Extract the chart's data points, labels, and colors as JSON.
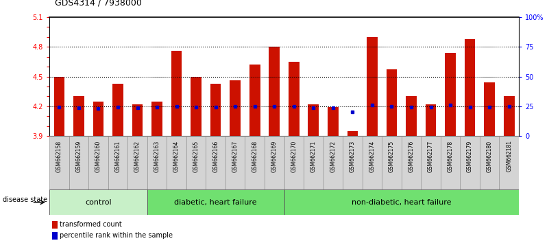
{
  "title": "GDS4314 / 7938000",
  "samples": [
    "GSM662158",
    "GSM662159",
    "GSM662160",
    "GSM662161",
    "GSM662162",
    "GSM662163",
    "GSM662164",
    "GSM662165",
    "GSM662166",
    "GSM662167",
    "GSM662168",
    "GSM662169",
    "GSM662170",
    "GSM662171",
    "GSM662172",
    "GSM662173",
    "GSM662174",
    "GSM662175",
    "GSM662176",
    "GSM662177",
    "GSM662178",
    "GSM662179",
    "GSM662180",
    "GSM662181"
  ],
  "bar_values": [
    4.5,
    4.3,
    4.25,
    4.43,
    4.22,
    4.25,
    4.76,
    4.5,
    4.43,
    4.46,
    4.62,
    4.8,
    4.65,
    4.22,
    4.19,
    3.95,
    4.9,
    4.57,
    4.3,
    4.22,
    4.74,
    4.88,
    4.44,
    4.3
  ],
  "percentile_values": [
    4.192,
    4.183,
    4.175,
    4.19,
    4.182,
    4.19,
    4.2,
    4.19,
    4.19,
    4.2,
    4.2,
    4.2,
    4.2,
    4.182,
    4.182,
    4.145,
    4.21,
    4.2,
    4.19,
    4.19,
    4.21,
    4.19,
    4.19,
    4.2
  ],
  "group_defs": [
    {
      "label": "control",
      "start": 0,
      "end": 5,
      "color": "#c8f0c8"
    },
    {
      "label": "diabetic, heart failure",
      "start": 5,
      "end": 12,
      "color": "#70e070"
    },
    {
      "label": "non-diabetic, heart failure",
      "start": 12,
      "end": 24,
      "color": "#70e070"
    }
  ],
  "ymin": 3.9,
  "ymax": 5.1,
  "yticks_all": [
    3.9,
    4.0,
    4.1,
    4.2,
    4.3,
    4.4,
    4.5,
    4.6,
    4.7,
    4.8,
    4.9,
    5.0,
    5.1
  ],
  "yticks_labeled": [
    3.9,
    4.2,
    4.5,
    4.8,
    5.1
  ],
  "right_yticks": [
    0,
    25,
    50,
    75,
    100
  ],
  "bar_color": "#cc1100",
  "percentile_color": "#0000cc",
  "dotted_lines": [
    4.2,
    4.5,
    4.8
  ],
  "title_fontsize": 9,
  "tick_fontsize": 7,
  "sample_fontsize": 5.5,
  "group_fontsize": 8,
  "legend_fontsize": 7,
  "disease_state_label": "disease state",
  "legend_items": [
    {
      "label": "transformed count",
      "color": "#cc1100"
    },
    {
      "label": "percentile rank within the sample",
      "color": "#0000cc"
    }
  ]
}
